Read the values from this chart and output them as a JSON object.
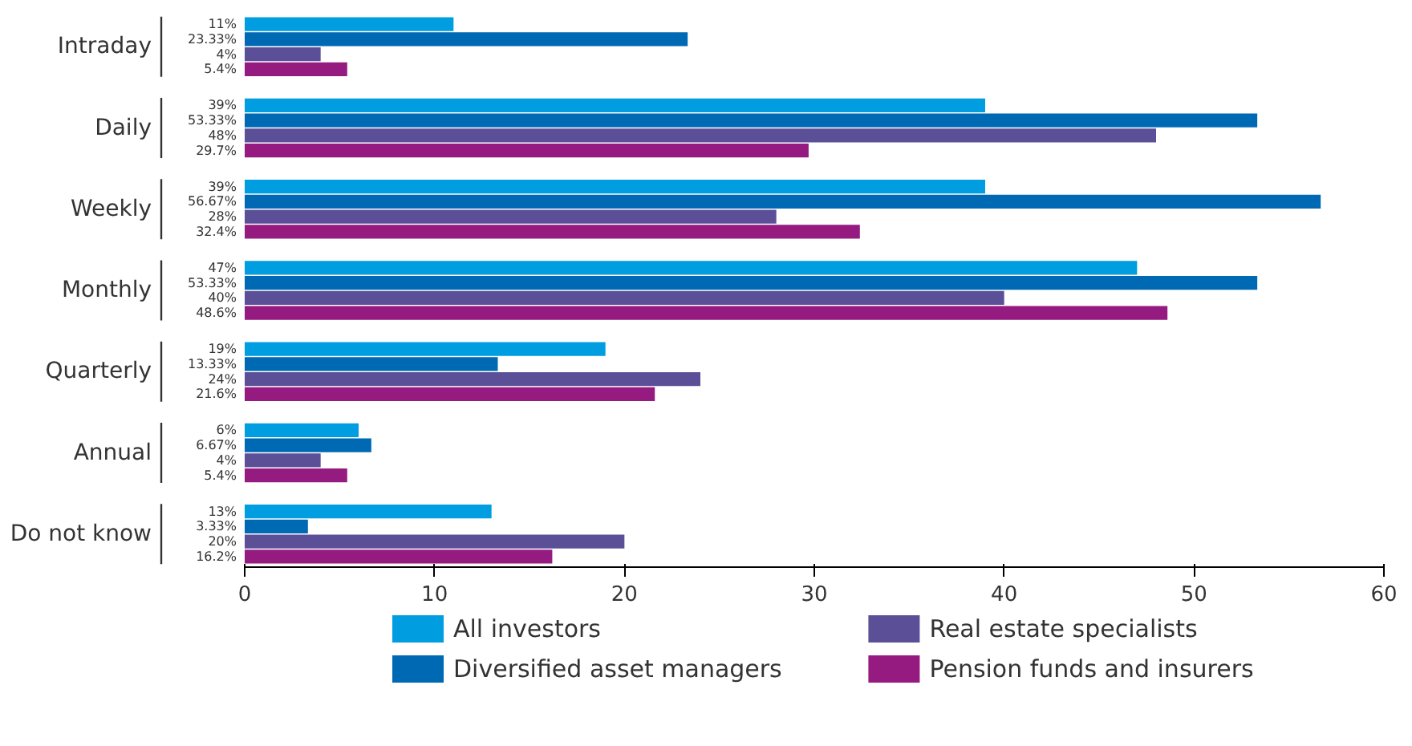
{
  "chart_data": {
    "type": "bar",
    "orientation": "horizontal",
    "categories": [
      "Intraday",
      "Daily",
      "Weekly",
      "Monthly",
      "Quarterly",
      "Annual",
      "Do not know"
    ],
    "series": [
      {
        "name": "All investors",
        "color": "#009ee0",
        "values": [
          11,
          39,
          39,
          47,
          19,
          6,
          13
        ],
        "value_labels": [
          "11%",
          "39%",
          "39%",
          "47%",
          "19%",
          "6%",
          "13%"
        ]
      },
      {
        "name": "Diversified asset managers",
        "color": "#0069b4",
        "values": [
          23.33,
          53.33,
          56.67,
          53.33,
          13.33,
          6.67,
          3.33
        ],
        "value_labels": [
          "23.33%",
          "53.33%",
          "56.67%",
          "53.33%",
          "13.33%",
          "6.67%",
          "3.33%"
        ]
      },
      {
        "name": "Real estate specialists",
        "color": "#5b5097",
        "values": [
          4,
          48,
          28,
          40,
          24,
          4,
          20
        ],
        "value_labels": [
          "4%",
          "48%",
          "28%",
          "40%",
          "24%",
          "4%",
          "20%"
        ]
      },
      {
        "name": "Pension funds and insurers",
        "color": "#951b81",
        "values": [
          5.4,
          29.7,
          32.4,
          48.6,
          21.6,
          5.4,
          16.2
        ],
        "value_labels": [
          "5.4%",
          "29.7%",
          "32.4%",
          "48.6%",
          "21.6%",
          "5.4%",
          "16.2%"
        ]
      }
    ],
    "xlim": [
      0,
      60
    ],
    "xticks": [
      0,
      10,
      20,
      30,
      40,
      50,
      60
    ],
    "grid": false,
    "legend": "bottom"
  }
}
